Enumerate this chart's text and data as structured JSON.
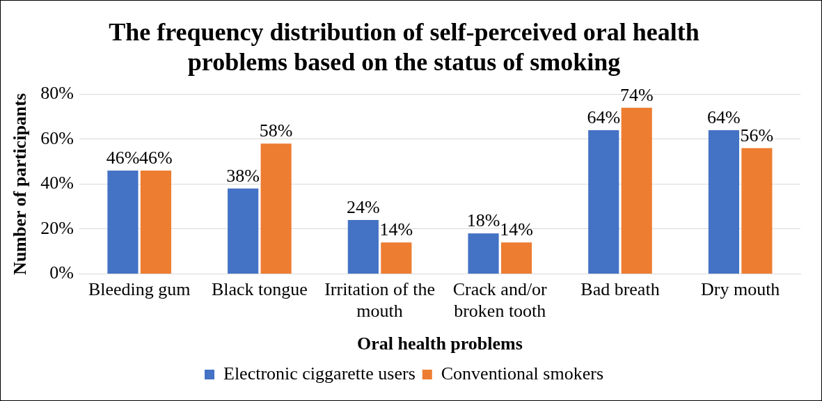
{
  "chart_data": {
    "type": "bar",
    "title": "The frequency distribution of self-perceived oral health problems based on the status of smoking",
    "xlabel": "Oral health problems",
    "ylabel": "Number of participants",
    "categories": [
      "Bleeding gum",
      "Black tongue",
      "Irritation of the mouth",
      "Crack and/or broken tooth",
      "Bad breath",
      "Dry mouth"
    ],
    "series": [
      {
        "name": "Electronic ciggarette users",
        "color": "#4472c4",
        "values": [
          46,
          38,
          24,
          18,
          64,
          64
        ],
        "value_labels": [
          "46%",
          "38%",
          "24%",
          "18%",
          "64%",
          "64%"
        ]
      },
      {
        "name": "Conventional smokers",
        "color": "#ed7d31",
        "values": [
          46,
          58,
          14,
          14,
          74,
          56
        ],
        "value_labels": [
          "46%",
          "58%",
          "14%",
          "14%",
          "74%",
          "56%"
        ]
      }
    ],
    "ylim": [
      0,
      80
    ],
    "yticks": [
      {
        "value": 0,
        "label": "0%"
      },
      {
        "value": 20,
        "label": "20%"
      },
      {
        "value": 40,
        "label": "40%"
      },
      {
        "value": 60,
        "label": "60%"
      },
      {
        "value": 80,
        "label": "80%"
      }
    ],
    "grid": "y",
    "legend": "bottom"
  }
}
